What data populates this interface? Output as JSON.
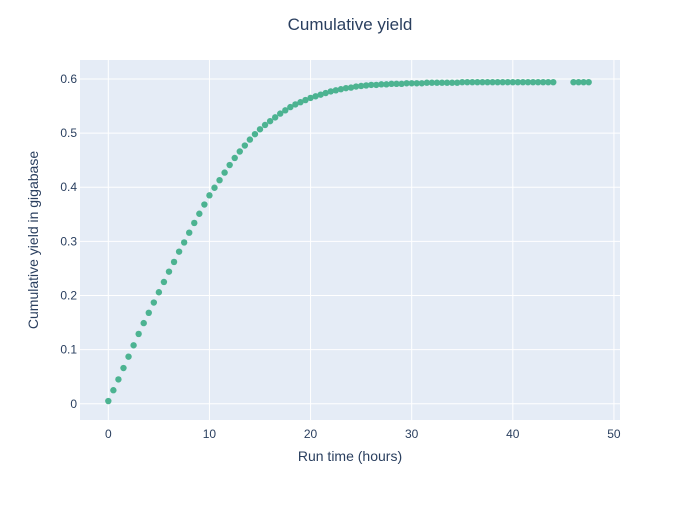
{
  "chart_data": {
    "type": "scatter",
    "title": "Cumulative yield",
    "xlabel": "Run time (hours)",
    "ylabel": "Cumulative yield in gigabase",
    "xlim": [
      -2.8,
      50.6
    ],
    "ylim": [
      -0.03,
      0.635
    ],
    "x_ticks": [
      0,
      10,
      20,
      30,
      40,
      50
    ],
    "y_ticks": [
      0,
      0.1,
      0.2,
      0.3,
      0.4,
      0.5,
      0.6
    ],
    "x_tick_labels": [
      "0",
      "10",
      "20",
      "30",
      "40",
      "50"
    ],
    "y_tick_labels": [
      "0",
      "0.1",
      "0.2",
      "0.3",
      "0.4",
      "0.5",
      "0.6"
    ],
    "grid": true,
    "legend": "none",
    "colors": {
      "marker": "#4cb391",
      "plot_bg": "#e5ecf6",
      "grid": "#ffffff",
      "text": "#2a3f5f"
    },
    "series": [
      {
        "x": [
          0,
          0.5,
          1,
          1.5,
          2,
          2.5,
          3,
          3.5,
          4,
          4.5,
          5,
          5.5,
          6,
          6.5,
          7,
          7.5,
          8,
          8.5,
          9,
          9.5,
          10,
          10.5,
          11,
          11.5,
          12,
          12.5,
          13,
          13.5,
          14,
          14.5,
          15,
          15.5,
          16,
          16.5,
          17,
          17.5,
          18,
          18.5,
          19,
          19.5,
          20,
          20.5,
          21,
          21.5,
          22,
          22.5,
          23,
          23.5,
          24,
          24.5,
          25,
          25.5,
          26,
          26.5,
          27,
          27.5,
          28,
          28.5,
          29,
          29.5,
          30,
          30.5,
          31,
          31.5,
          32,
          32.5,
          33,
          33.5,
          34,
          34.5,
          35,
          35.5,
          36,
          36.5,
          37,
          37.5,
          38,
          38.5,
          39,
          39.5,
          40,
          40.5,
          41,
          41.5,
          42,
          42.5,
          43,
          43.5,
          44,
          46,
          46.5,
          47,
          47.5
        ],
        "y": [
          0.005,
          0.025,
          0.045,
          0.066,
          0.087,
          0.108,
          0.129,
          0.149,
          0.168,
          0.187,
          0.206,
          0.225,
          0.244,
          0.262,
          0.281,
          0.298,
          0.316,
          0.334,
          0.351,
          0.368,
          0.385,
          0.399,
          0.413,
          0.427,
          0.441,
          0.454,
          0.466,
          0.477,
          0.488,
          0.498,
          0.507,
          0.515,
          0.522,
          0.529,
          0.536,
          0.542,
          0.548,
          0.553,
          0.557,
          0.561,
          0.565,
          0.568,
          0.571,
          0.574,
          0.577,
          0.579,
          0.581,
          0.583,
          0.584,
          0.586,
          0.587,
          0.588,
          0.589,
          0.589,
          0.59,
          0.59,
          0.591,
          0.591,
          0.591,
          0.592,
          0.592,
          0.592,
          0.592,
          0.593,
          0.593,
          0.593,
          0.593,
          0.593,
          0.593,
          0.593,
          0.594,
          0.594,
          0.594,
          0.594,
          0.594,
          0.594,
          0.594,
          0.594,
          0.594,
          0.594,
          0.594,
          0.594,
          0.594,
          0.594,
          0.594,
          0.594,
          0.594,
          0.594,
          0.594,
          0.594,
          0.594,
          0.594,
          0.594
        ]
      }
    ]
  }
}
